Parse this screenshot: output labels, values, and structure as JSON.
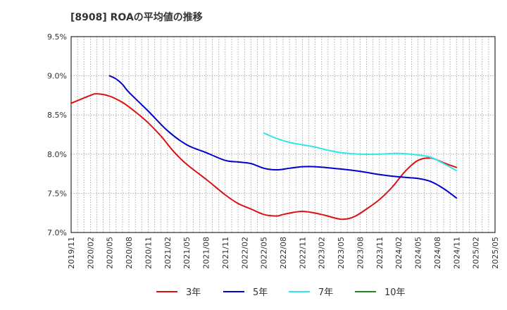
{
  "chart_data": {
    "type": "line",
    "title": "[8908]  ROAの平均値の推移",
    "xlabel": "",
    "ylabel": "",
    "ylim": [
      7.0,
      9.5
    ],
    "y_ticks": [
      7.0,
      7.5,
      8.0,
      8.5,
      9.0,
      9.5
    ],
    "y_tick_labels": [
      "7.0%",
      "7.5%",
      "8.0%",
      "8.5%",
      "9.0%",
      "9.5%"
    ],
    "x_ticks": [
      "2019/11",
      "2020/02",
      "2020/05",
      "2020/08",
      "2020/11",
      "2021/02",
      "2021/05",
      "2021/08",
      "2021/11",
      "2022/02",
      "2022/05",
      "2022/08",
      "2022/11",
      "2023/02",
      "2023/05",
      "2023/08",
      "2023/11",
      "2024/02",
      "2024/05",
      "2024/08",
      "2024/11",
      "2025/02",
      "2025/05"
    ],
    "grid": true,
    "legend_position": "bottom",
    "series": [
      {
        "name": "3年",
        "color": "#dd1111",
        "points": [
          [
            "2019/11",
            8.65
          ],
          [
            "2020/02",
            8.75
          ],
          [
            "2020/03",
            8.77
          ],
          [
            "2020/05",
            8.74
          ],
          [
            "2020/07",
            8.66
          ],
          [
            "2020/09",
            8.54
          ],
          [
            "2020/11",
            8.4
          ],
          [
            "2021/01",
            8.23
          ],
          [
            "2021/03",
            8.03
          ],
          [
            "2021/05",
            7.87
          ],
          [
            "2021/08",
            7.68
          ],
          [
            "2021/11",
            7.48
          ],
          [
            "2022/01",
            7.37
          ],
          [
            "2022/03",
            7.3
          ],
          [
            "2022/05",
            7.23
          ],
          [
            "2022/07",
            7.21
          ],
          [
            "2022/08",
            7.23
          ],
          [
            "2022/11",
            7.27
          ],
          [
            "2023/02",
            7.23
          ],
          [
            "2023/05",
            7.17
          ],
          [
            "2023/07",
            7.2
          ],
          [
            "2023/09",
            7.3
          ],
          [
            "2023/11",
            7.42
          ],
          [
            "2024/01",
            7.58
          ],
          [
            "2024/03",
            7.78
          ],
          [
            "2024/05",
            7.92
          ],
          [
            "2024/07",
            7.95
          ],
          [
            "2024/09",
            7.89
          ],
          [
            "2024/11",
            7.83
          ]
        ]
      },
      {
        "name": "5年",
        "color": "#0000cc",
        "points": [
          [
            "2020/05",
            9.0
          ],
          [
            "2020/06",
            8.96
          ],
          [
            "2020/07",
            8.89
          ],
          [
            "2020/08",
            8.79
          ],
          [
            "2020/11",
            8.55
          ],
          [
            "2021/02",
            8.3
          ],
          [
            "2021/05",
            8.12
          ],
          [
            "2021/08",
            8.02
          ],
          [
            "2021/11",
            7.92
          ],
          [
            "2022/01",
            7.9
          ],
          [
            "2022/03",
            7.88
          ],
          [
            "2022/05",
            7.82
          ],
          [
            "2022/07",
            7.8
          ],
          [
            "2022/09",
            7.82
          ],
          [
            "2022/11",
            7.84
          ],
          [
            "2023/01",
            7.84
          ],
          [
            "2023/05",
            7.81
          ],
          [
            "2023/08",
            7.78
          ],
          [
            "2023/11",
            7.74
          ],
          [
            "2024/02",
            7.71
          ],
          [
            "2024/05",
            7.69
          ],
          [
            "2024/07",
            7.65
          ],
          [
            "2024/09",
            7.56
          ],
          [
            "2024/11",
            7.44
          ]
        ]
      },
      {
        "name": "7年",
        "color": "#33e6e6",
        "points": [
          [
            "2022/05",
            8.27
          ],
          [
            "2022/07",
            8.2
          ],
          [
            "2022/09",
            8.15
          ],
          [
            "2022/11",
            8.12
          ],
          [
            "2023/01",
            8.09
          ],
          [
            "2023/03",
            8.05
          ],
          [
            "2023/05",
            8.02
          ],
          [
            "2023/08",
            8.0
          ],
          [
            "2023/11",
            8.0
          ],
          [
            "2024/02",
            8.01
          ],
          [
            "2024/05",
            7.99
          ],
          [
            "2024/07",
            7.96
          ],
          [
            "2024/09",
            7.88
          ],
          [
            "2024/11",
            7.79
          ]
        ]
      },
      {
        "name": "10年",
        "color": "#228822",
        "points": []
      }
    ]
  }
}
